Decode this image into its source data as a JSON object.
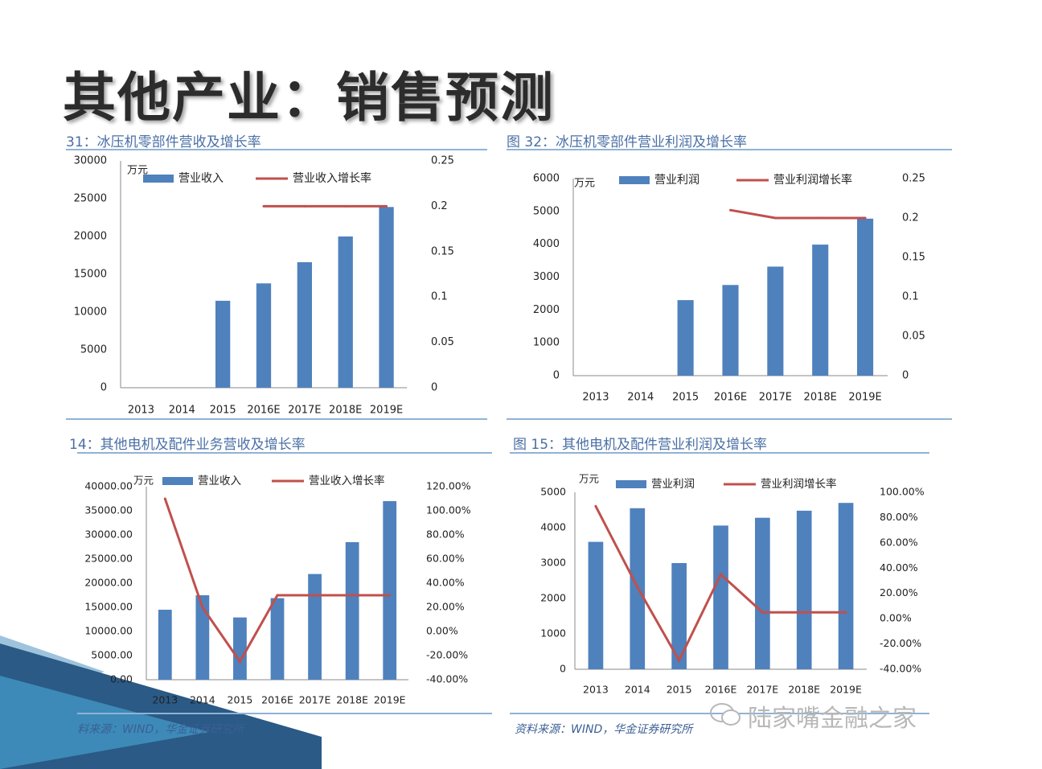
{
  "page_title": "其他产业：销售预测",
  "colors": {
    "bar": "#4f81bd",
    "line": "#c0504d",
    "title_text": "#4a6fa5",
    "rule": "#8fb3d6"
  },
  "watermark": "陆家嘴金融之家",
  "charts": [
    {
      "title": "31：冰压机零部件营收及增长率",
      "source": ""
    },
    {
      "title": "图 32：冰压机零部件营业利润及增长率",
      "source": ""
    },
    {
      "title": "14：其他电机及配件业务营收及增长率",
      "source": "料来源：WIND，华金证券研究所"
    },
    {
      "title": "图 15：其他电机及配件营业利润及增长率",
      "source": "资料来源：WIND，华金证券研究所"
    }
  ],
  "chart_data": [
    {
      "type": "bar",
      "unit": "万元",
      "categories": [
        "2013",
        "2014",
        "2015",
        "2016E",
        "2017E",
        "2018E",
        "2019E"
      ],
      "series": [
        {
          "name": "营业收入",
          "type": "bar",
          "axis": "left",
          "values": [
            null,
            null,
            11500,
            13800,
            16600,
            20000,
            23900
          ]
        },
        {
          "name": "营业收入增长率",
          "type": "line",
          "axis": "right",
          "values": [
            null,
            null,
            null,
            0.2,
            0.2,
            0.2,
            0.2
          ]
        }
      ],
      "y_left": {
        "min": 0,
        "max": 30000,
        "ticks": [
          "0",
          "5000",
          "10000",
          "15000",
          "20000",
          "25000",
          "30000"
        ]
      },
      "y_right": {
        "min": 0,
        "max": 0.25,
        "ticks": [
          "0",
          "0.05",
          "0.1",
          "0.15",
          "0.2",
          "0.25"
        ]
      }
    },
    {
      "type": "bar",
      "unit": "万元",
      "categories": [
        "2013",
        "2014",
        "2015",
        "2016E",
        "2017E",
        "2018E",
        "2019E"
      ],
      "series": [
        {
          "name": "营业利润",
          "type": "bar",
          "axis": "left",
          "values": [
            null,
            null,
            2300,
            2760,
            3320,
            3990,
            4780
          ]
        },
        {
          "name": "营业利润增长率",
          "type": "line",
          "axis": "right",
          "values": [
            null,
            null,
            null,
            0.21,
            0.2,
            0.2,
            0.2
          ]
        }
      ],
      "y_left": {
        "min": 0,
        "max": 6000,
        "ticks": [
          "0",
          "1000",
          "2000",
          "3000",
          "4000",
          "5000",
          "6000"
        ]
      },
      "y_right": {
        "min": 0,
        "max": 0.25,
        "ticks": [
          "0",
          "0.05",
          "0.1",
          "0.15",
          "0.2",
          "0.25"
        ]
      }
    },
    {
      "type": "bar",
      "unit": "万元",
      "categories": [
        "2013",
        "2014",
        "2015",
        "2016E",
        "2017E",
        "2018E",
        "2019E"
      ],
      "series": [
        {
          "name": "营业收入",
          "type": "bar",
          "axis": "left",
          "values": [
            14500,
            17500,
            12900,
            16900,
            21900,
            28500,
            37000
          ]
        },
        {
          "name": "营业收入增长率",
          "type": "line",
          "axis": "right",
          "values": [
            1.1,
            0.2,
            -0.25,
            0.3,
            0.3,
            0.3,
            0.3
          ]
        }
      ],
      "y_left": {
        "min": 0,
        "max": 40000,
        "ticks": [
          "0.00",
          "5000.00",
          "10000.00",
          "15000.00",
          "20000.00",
          "25000.00",
          "30000.00",
          "35000.00",
          "40000.00"
        ]
      },
      "y_right": {
        "min": -0.4,
        "max": 1.2,
        "ticks": [
          "-40.00%",
          "-20.00%",
          "0.00%",
          "20.00%",
          "40.00%",
          "60.00%",
          "80.00%",
          "100.00%",
          "120.00%"
        ]
      }
    },
    {
      "type": "bar",
      "unit": "万元",
      "categories": [
        "2013",
        "2014",
        "2015",
        "2016E",
        "2017E",
        "2018E",
        "2019E"
      ],
      "series": [
        {
          "name": "营业利润",
          "type": "bar",
          "axis": "left",
          "values": [
            3600,
            4550,
            3000,
            4060,
            4280,
            4480,
            4700
          ]
        },
        {
          "name": "营业利润增长率",
          "type": "line",
          "axis": "right",
          "values": [
            0.89,
            0.25,
            -0.33,
            0.35,
            0.05,
            0.05,
            0.05
          ]
        }
      ],
      "y_left": {
        "min": 0,
        "max": 5000,
        "ticks": [
          "0",
          "1000",
          "2000",
          "3000",
          "4000",
          "5000"
        ]
      },
      "y_right": {
        "min": -0.4,
        "max": 1.0,
        "ticks": [
          "-40.00%",
          "-20.00%",
          "0.00%",
          "20.00%",
          "40.00%",
          "60.00%",
          "80.00%",
          "100.00%"
        ]
      }
    }
  ]
}
